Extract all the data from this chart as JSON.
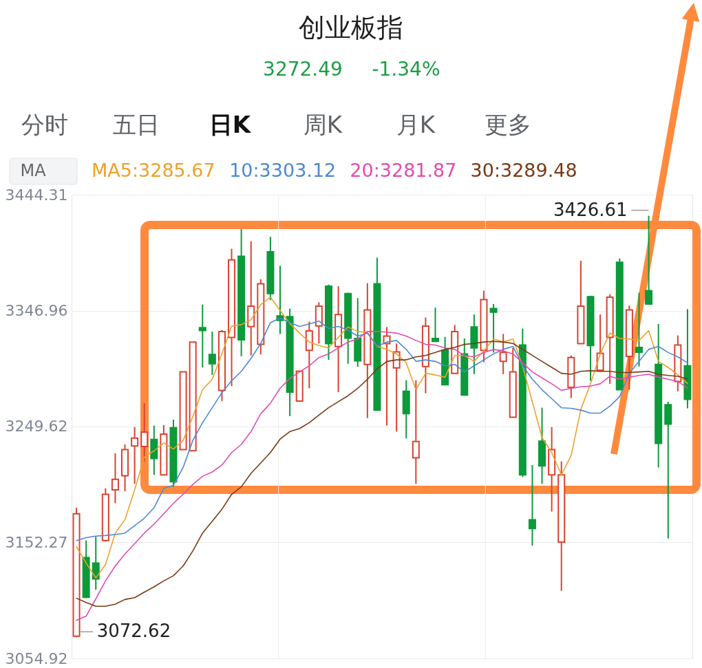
{
  "chart_data": {
    "type": "candlestick",
    "title": "创业板指",
    "categories": [
      null,
      null,
      null,
      null,
      null,
      null,
      null,
      null,
      null,
      null,
      null,
      null,
      null,
      null,
      null,
      null,
      null,
      null,
      null,
      null,
      null,
      null,
      null,
      null,
      null,
      null,
      null,
      null,
      null,
      null,
      null,
      null,
      null,
      null,
      null,
      null,
      null,
      null,
      null,
      null,
      null,
      null,
      null,
      null,
      null,
      null,
      null,
      null,
      null,
      null,
      null,
      null,
      null,
      null,
      null,
      null,
      null,
      null,
      null,
      null,
      null,
      null,
      null,
      null
    ],
    "ohlc": [
      [
        3073.5,
        3181.4,
        3072.62,
        3176.4
      ],
      [
        3139.6,
        3153.9,
        3105.5,
        3106.2
      ],
      [
        3135.0,
        3157.1,
        3112.5,
        3121.7
      ],
      [
        3153.9,
        3197.7,
        3153.0,
        3192.7
      ],
      [
        3196.5,
        3227.1,
        3185.2,
        3205.3
      ],
      [
        3208.3,
        3234.6,
        3195.2,
        3230.3
      ],
      [
        3233.3,
        3249.1,
        3201.5,
        3239.9
      ],
      [
        3232.8,
        3269.2,
        3220.3,
        3244.9
      ],
      [
        3238.8,
        3250.4,
        3209.0,
        3222.8
      ],
      [
        3209.0,
        3250.9,
        3208.5,
        3243.3
      ],
      [
        3248.6,
        3255.4,
        3199.0,
        3203.3
      ],
      [
        3230.3,
        3295.5,
        3230.3,
        3295.5
      ],
      [
        3229.3,
        3320.6,
        3229.3,
        3320.6
      ],
      [
        3332.7,
        3352.0,
        3299.3,
        3330.2
      ],
      [
        3310.1,
        3329.4,
        3293.0,
        3302.3
      ],
      [
        3280.0,
        3330.7,
        3271.0,
        3329.4
      ],
      [
        3324.4,
        3398.9,
        3283.5,
        3389.6
      ],
      [
        3392.6,
        3415.4,
        3308.6,
        3322.4
      ],
      [
        3333.6,
        3405.1,
        3309.3,
        3350.7
      ],
      [
        3318.6,
        3373.3,
        3310.1,
        3369.5
      ],
      [
        3396.4,
        3408.9,
        3355.7,
        3361.2
      ],
      [
        3342.5,
        3384.6,
        3327.4,
        3338.7
      ],
      [
        3341.9,
        3348.7,
        3258.4,
        3278.5
      ],
      [
        3271.0,
        3296.1,
        3271.0,
        3296.1
      ],
      [
        3313.6,
        3337.7,
        3281.8,
        3329.9
      ],
      [
        3334.1,
        3354.0,
        3319.3,
        3350.7
      ],
      [
        3367.5,
        3368.8,
        3305.6,
        3319.3
      ],
      [
        3316.8,
        3367.5,
        3278.5,
        3343.7
      ],
      [
        3361.2,
        3362.0,
        3302.3,
        3323.9
      ],
      [
        3323.6,
        3357.5,
        3299.8,
        3304.8
      ],
      [
        3301.8,
        3370.0,
        3256.7,
        3347.5
      ],
      [
        3369.5,
        3391.4,
        3263.0,
        3263.4
      ],
      [
        3319.3,
        3333.2,
        3250.4,
        3325.6
      ],
      [
        3298.8,
        3319.3,
        3245.4,
        3312.3
      ],
      [
        3279.2,
        3288.5,
        3239.6,
        3260.4
      ],
      [
        3223.3,
        3288.5,
        3201.5,
        3237.1
      ],
      [
        3300.0,
        3341.2,
        3277.5,
        3333.9
      ],
      [
        3323.6,
        3349.5,
        3321.1,
        3321.1
      ],
      [
        3313.8,
        3324.9,
        3284.7,
        3284.7
      ],
      [
        3294.3,
        3334.9,
        3293.6,
        3329.4
      ],
      [
        3310.6,
        3323.6,
        3276.0,
        3276.0
      ],
      [
        3333.2,
        3343.7,
        3293.6,
        3315.6
      ],
      [
        3313.6,
        3363.7,
        3303.6,
        3356.2
      ],
      [
        3348.7,
        3352.5,
        3311.8,
        3345.7
      ],
      [
        3304.3,
        3327.4,
        3293.6,
        3311.8
      ],
      [
        3257.4,
        3315.6,
        3257.4,
        3295.5
      ],
      [
        3318.1,
        3331.9,
        3207.3,
        3209.0
      ],
      [
        3171.4,
        3217.3,
        3149.6,
        3163.9
      ],
      [
        3237.4,
        3265.4,
        3201.5,
        3216.5
      ],
      [
        3209.0,
        3249.1,
        3178.2,
        3230.3
      ],
      [
        3152.6,
        3220.3,
        3111.7,
        3209.0
      ],
      [
        3282.5,
        3309.3,
        3273.5,
        3307.6
      ],
      [
        3319.3,
        3388.9,
        3319.3,
        3350.7
      ],
      [
        3358.7,
        3359.5,
        3288.0,
        3317.6
      ],
      [
        3296.8,
        3343.7,
        3296.1,
        3311.1
      ],
      [
        3324.4,
        3360.7,
        3285.5,
        3358.2
      ],
      [
        3387.6,
        3390.8,
        3280.5,
        3280.5
      ],
      [
        3308.6,
        3351.2,
        3280.5,
        3347.5
      ],
      [
        3316.0,
        3362.0,
        3300.0,
        3312.0
      ],
      [
        3363.7,
        3426.61,
        3352.5,
        3352.5
      ],
      [
        3301.8,
        3335.7,
        3215.3,
        3235.4
      ],
      [
        3267.9,
        3270.4,
        3155.6,
        3251.7
      ],
      [
        3287.5,
        3326.1,
        3279.2,
        3318.1
      ],
      [
        3300.6,
        3348.2,
        3264.9,
        3272.49
      ]
    ],
    "colors": [
      "#d9432e",
      "#0c9a3a",
      "#0c9a3a",
      "#d9432e",
      "#d9432e",
      "#d9432e",
      "#d9432e",
      "#d9432e",
      "#0c9a3a",
      "#d9432e",
      "#0c9a3a",
      "#d9432e",
      "#d9432e",
      "#0c9a3a",
      "#0c9a3a",
      "#d9432e",
      "#d9432e",
      "#0c9a3a",
      "#d9432e",
      "#d9432e",
      "#0c9a3a",
      "#0c9a3a",
      "#0c9a3a",
      "#d9432e",
      "#d9432e",
      "#d9432e",
      "#0c9a3a",
      "#d9432e",
      "#0c9a3a",
      "#0c9a3a",
      "#d9432e",
      "#0c9a3a",
      "#d9432e",
      "#d9432e",
      "#0c9a3a",
      "#d9432e",
      "#d9432e",
      "#0c9a3a",
      "#0c9a3a",
      "#d9432e",
      "#0c9a3a",
      "#0c9a3a",
      "#d9432e",
      "#0c9a3a",
      "#d9432e",
      "#d9432e",
      "#0c9a3a",
      "#0c9a3a",
      "#0c9a3a",
      "#d9432e",
      "#d9432e",
      "#d9432e",
      "#d9432e",
      "#0c9a3a",
      "#d9432e",
      "#d9432e",
      "#0c9a3a",
      "#d9432e",
      "#0c9a3a",
      "#0c9a3a",
      "#0c9a3a",
      "#0c9a3a",
      "#d9432e",
      "#0c9a3a"
    ],
    "series": [
      {
        "name": "MA5:3285.67",
        "type": "line",
        "color": "#eda22a",
        "values": [
          3148.8,
          3135.0,
          3122.5,
          3133.8,
          3160.1,
          3171.4,
          3196.5,
          3224.1,
          3229.1,
          3235.9,
          3230.8,
          3237.9,
          3258.0,
          3280.5,
          3289.3,
          3310.6,
          3333.9,
          3335.2,
          3339.4,
          3352.0,
          3358.3,
          3347.0,
          3336.2,
          3328.1,
          3320.6,
          3317.6,
          3315.6,
          3324.4,
          3333.2,
          3329.4,
          3328.6,
          3316.9,
          3314.4,
          3310.6,
          3303.1,
          3280.5,
          3294.3,
          3293.0,
          3291.0,
          3309.3,
          3309.3,
          3304.3,
          3313.1,
          3323.1,
          3320.6,
          3323.1,
          3300.5,
          3270.4,
          3240.4,
          3227.8,
          3209.0,
          3225.3,
          3264.0,
          3285.5,
          3310.6,
          3328.1,
          3323.6,
          3323.1,
          3321.9,
          3330.1,
          3304.3,
          3299.3,
          3293.0,
          3285.67
        ]
      },
      {
        "name": "10:3303.12",
        "type": "line",
        "color": "#4b89d6",
        "values": [
          3153.8,
          3156.3,
          3157.6,
          3158.1,
          3158.9,
          3160.1,
          3166.4,
          3172.6,
          3181.4,
          3197.7,
          3200.2,
          3215.3,
          3238.0,
          3252.9,
          3265.4,
          3278.0,
          3288.0,
          3296.0,
          3306.8,
          3319.4,
          3336.9,
          3340.7,
          3336.9,
          3333.7,
          3335.7,
          3338.2,
          3331.9,
          3333.7,
          3330.6,
          3325.6,
          3328.1,
          3316.9,
          3320.6,
          3321.9,
          3314.4,
          3304.3,
          3305.6,
          3304.3,
          3300.6,
          3301.8,
          3295.5,
          3300.6,
          3305.6,
          3310.6,
          3314.4,
          3316.9,
          3300.6,
          3289.3,
          3280.5,
          3273.0,
          3265.4,
          3264.9,
          3263.4,
          3260.9,
          3260.9,
          3266.7,
          3274.7,
          3294.3,
          3304.3,
          3314.4,
          3316.9,
          3311.8,
          3308.1,
          3303.12
        ]
      },
      {
        "name": "20:3281.87",
        "type": "line",
        "color": "#e44bae",
        "values": [
          3086.9,
          3090.4,
          3104.9,
          3120.0,
          3132.5,
          3142.6,
          3151.3,
          3160.1,
          3167.6,
          3176.4,
          3185.2,
          3192.7,
          3201.0,
          3207.8,
          3211.5,
          3217.3,
          3227.8,
          3234.6,
          3245.4,
          3260.4,
          3269.2,
          3281.8,
          3290.0,
          3295.5,
          3300.6,
          3307.6,
          3310.6,
          3315.6,
          3320.6,
          3323.1,
          3329.4,
          3329.4,
          3328.9,
          3328.1,
          3325.6,
          3321.9,
          3318.6,
          3318.1,
          3315.6,
          3314.4,
          3309.3,
          3308.1,
          3311.8,
          3314.4,
          3313.1,
          3310.6,
          3303.1,
          3295.5,
          3290.5,
          3285.5,
          3280.0,
          3281.7,
          3283.0,
          3283.5,
          3285.5,
          3291.8,
          3289.3,
          3291.0,
          3292.5,
          3293.5,
          3291.0,
          3289.3,
          3287.5,
          3281.87
        ]
      },
      {
        "name": "30:3289.48",
        "type": "line",
        "color": "#7a3a14",
        "values": [
          3105.4,
          3101.9,
          3098.7,
          3098.7,
          3100.4,
          3104.4,
          3105.9,
          3110.5,
          3115.0,
          3120.0,
          3124.3,
          3132.5,
          3145.1,
          3160.1,
          3170.1,
          3180.2,
          3192.7,
          3199.0,
          3210.3,
          3219.0,
          3227.8,
          3239.1,
          3245.4,
          3247.9,
          3252.9,
          3259.2,
          3265.4,
          3270.5,
          3275.5,
          3281.7,
          3289.3,
          3298.0,
          3304.3,
          3305.6,
          3305.6,
          3308.1,
          3309.3,
          3311.9,
          3314.4,
          3316.1,
          3318.6,
          3319.4,
          3320.6,
          3321.1,
          3320.6,
          3319.4,
          3314.4,
          3309.3,
          3304.3,
          3299.3,
          3294.3,
          3293.5,
          3296.0,
          3296.5,
          3296.0,
          3296.0,
          3295.0,
          3295.0,
          3295.5,
          3296.0,
          3293.5,
          3292.5,
          3291.8,
          3289.48
        ]
      }
    ],
    "ylim": [
      3054.92,
      3444.31
    ],
    "yticks": [
      3054.92,
      3152.27,
      3249.62,
      3346.96,
      3444.31
    ],
    "grid": true,
    "legend": "top left",
    "tick_labels": "y",
    "annotations": [
      "3272.49",
      "-1.34%",
      "分时",
      "五日",
      "日K",
      "周K",
      "月K",
      "更多",
      "MA",
      "3426.61",
      "3072.62"
    ]
  }
}
